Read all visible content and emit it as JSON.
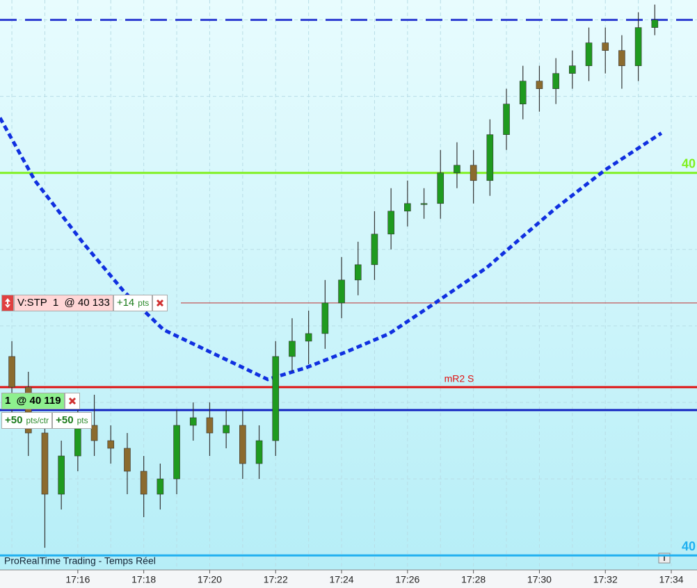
{
  "chart_data": {
    "type": "candlestick",
    "x": [
      14,
      14.5,
      15,
      15.5,
      16,
      16.5,
      17,
      17.5,
      18,
      18.5,
      19,
      19.5,
      20,
      20.5,
      21,
      21.5,
      22,
      22.5,
      23,
      23.5,
      24,
      24.5,
      25,
      25.5,
      26,
      26.5,
      27,
      27.5,
      28,
      28.5,
      29,
      29.5,
      30,
      30.5,
      31,
      31.5,
      32,
      32.5,
      33,
      33.5
    ],
    "open": [
      40126,
      40122,
      40116,
      40108,
      40113,
      40117,
      40115,
      40114,
      40111,
      40108,
      40110,
      40117,
      40118,
      40116,
      40117,
      40112,
      40115,
      40126,
      40128,
      40129,
      40133,
      40136,
      40138,
      40142,
      40145,
      40146,
      40146,
      40150,
      40151,
      40149,
      40155,
      40159,
      40162,
      40161,
      40163,
      40164,
      40167,
      40166,
      40164,
      40169
    ],
    "high": [
      40128,
      40124,
      40118,
      40115,
      40119,
      40121,
      40117,
      40116,
      40113,
      40112,
      40119,
      40120,
      40120,
      40119,
      40119,
      40117,
      40128,
      40131,
      40132,
      40136,
      40139,
      40141,
      40145,
      40148,
      40149,
      40148,
      40153,
      40154,
      40153,
      40157,
      40161,
      40164,
      40164,
      40165,
      40166,
      40169,
      40169,
      40168,
      40171,
      40172
    ],
    "low": [
      40118,
      40113,
      40101,
      40106,
      40111,
      40113,
      40112,
      40108,
      40105,
      40106,
      40108,
      40115,
      40113,
      40114,
      40110,
      40110,
      40113,
      40124,
      40125,
      40127,
      40131,
      40134,
      40136,
      40140,
      40143,
      40144,
      40144,
      40148,
      40146,
      40147,
      40153,
      40157,
      40158,
      40159,
      40161,
      40162,
      40163,
      40161,
      40162,
      40168
    ],
    "close": [
      40122,
      40116,
      40108,
      40113,
      40117,
      40115,
      40114,
      40111,
      40108,
      40110,
      40117,
      40118,
      40116,
      40117,
      40112,
      40115,
      40126,
      40128,
      40129,
      40133,
      40136,
      40138,
      40142,
      40145,
      40146,
      40146,
      40150,
      40151,
      40149,
      40155,
      40159,
      40162,
      40161,
      40163,
      40164,
      40167,
      40166,
      40164,
      40169,
      40170
    ],
    "up_color": "#1f9a1f",
    "down_color": "#8b6b2e",
    "xlim": [
      13.64,
      34.78
    ],
    "ylim": [
      40098.1,
      40172.6
    ],
    "xticks": [
      {
        "value": 16,
        "label": "17:16"
      },
      {
        "value": 18,
        "label": "17:18"
      },
      {
        "value": 20,
        "label": "17:20"
      },
      {
        "value": 22,
        "label": "17:22"
      },
      {
        "value": 24,
        "label": "17:24"
      },
      {
        "value": 26,
        "label": "17:26"
      },
      {
        "value": 28,
        "label": "17:28"
      },
      {
        "value": 30,
        "label": "17:30"
      },
      {
        "value": 32,
        "label": "17:32"
      },
      {
        "value": 34,
        "label": "17:34"
      }
    ],
    "xgrid": [
      14,
      15,
      16,
      17,
      18,
      19,
      20,
      21,
      22,
      23,
      24,
      25,
      26,
      27,
      28,
      29,
      30,
      31,
      32,
      33,
      34
    ],
    "ygrid": [
      40100,
      40110,
      40120,
      40130,
      40140,
      40150,
      40160,
      40170
    ],
    "moving_average": {
      "color": "#1030e0",
      "x": [
        13.64,
        14.7,
        16.17,
        17.4,
        18.6,
        19.96,
        21.76,
        22.9,
        24.2,
        25.45,
        26.7,
        28.4,
        29.5,
        30.5,
        32.0,
        33.7
      ],
      "values": [
        40157.2,
        40149,
        40140.8,
        40134.5,
        40129.5,
        40126.7,
        40123,
        40124.5,
        40126.7,
        40129,
        40132.6,
        40137.6,
        40141.7,
        40145.4,
        40150.4,
        40155.2
      ]
    },
    "levels": [
      {
        "value": 40170,
        "color": "#2a3ad0",
        "style": "dashed"
      },
      {
        "value": 40150,
        "color": "#80f020",
        "label": "40"
      },
      {
        "value": 40133,
        "color": "#c03030",
        "style": "thin"
      },
      {
        "value": 40122,
        "color": "#e01010",
        "label": "mR2 S"
      },
      {
        "value": 40119,
        "color": "#1020c0"
      },
      {
        "value": 40100,
        "color": "#20b0f0",
        "label": "40"
      }
    ],
    "orders": [
      {
        "label": "V:STP  1  @",
        "price": {
          "value": 40133,
          "label": "40 133"
        },
        "gain": "+14",
        "unit": "pts"
      },
      {
        "label": "1  @",
        "price": {
          "value": 40119,
          "label": "40 119"
        },
        "gain_per_contract": "+50",
        "unit_per_contract": "pts/ctr",
        "gain": "+50",
        "unit": "pts"
      }
    ],
    "footer": "ProRealTime Trading - Temps Réel"
  }
}
